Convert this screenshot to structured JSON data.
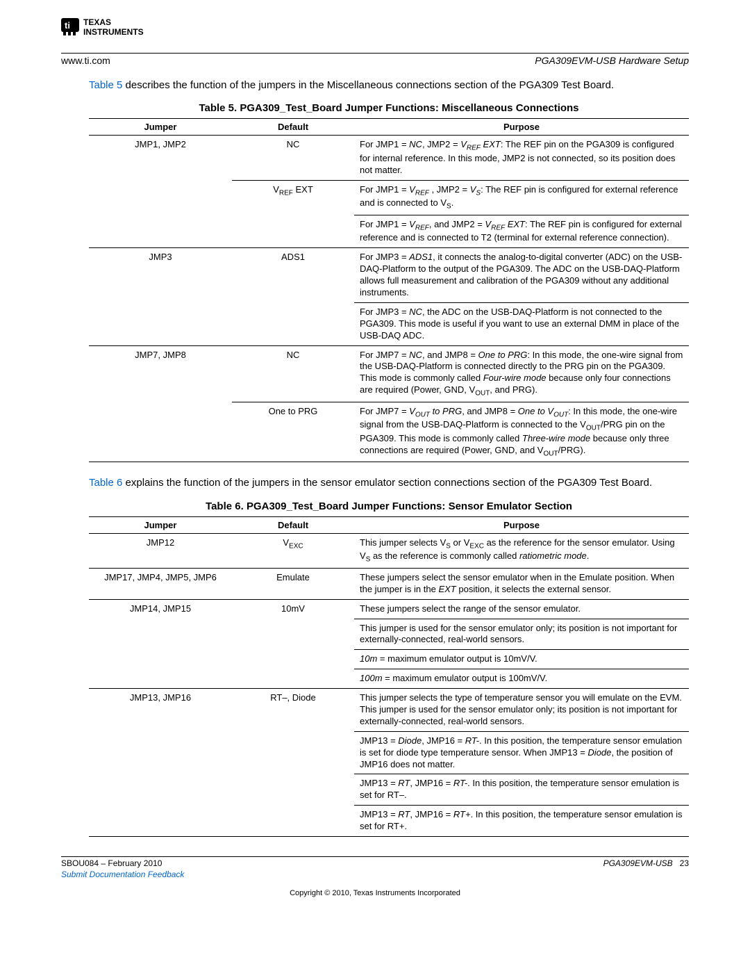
{
  "header": {
    "site_url": "www.ti.com",
    "section_title": "PGA309EVM-USB Hardware Setup"
  },
  "intro1_prefix": "Table 5",
  "intro1_rest": " describes the function of the jumpers in the Miscellaneous connections section of the PGA309 Test Board.",
  "table5": {
    "title": "Table 5. PGA309_Test_Board Jumper Functions: Miscellaneous Connections",
    "headers": {
      "c1": "Jumper",
      "c2": "Default",
      "c3": "Purpose"
    },
    "rows": [
      {
        "jumper": "JMP1, JMP2",
        "default": "NC",
        "purpose_html": "For JMP1 = <span class='ital'>NC</span>, JMP2 = <span class='ital'>V<span class='sub'>REF</span> EXT</span>: The REF pin on the PGA309 is configured for internal reference. In this mode, JMP2 is not connected, so its position does not matter."
      },
      {
        "jumper": "",
        "default_html": "V<span class='sub'>REF</span> EXT",
        "purpose_html": "For JMP1 = <span class='ital'>V<span class='sub'>REF</span></span> , JMP2 = <span class='ital'>V<span class='sub'>S</span></span>: The REF pin is configured for external reference and is connected to V<span class='sub'>S</span>."
      },
      {
        "jumper": "",
        "default": "",
        "purpose_html": "For JMP1 = <span class='ital'>V<span class='sub'>REF</span></span>, and JMP2 = <span class='ital'>V<span class='sub'>REF</span> EXT</span>: The REF pin is configured for external reference and is connected to T2 (terminal for external reference connection)."
      },
      {
        "jumper": "JMP3",
        "default": "ADS1",
        "purpose_html": "For JMP3 = <span class='ital'>ADS1</span>, it connects the analog-to-digital converter (ADC) on the USB-DAQ-Platform to the output of the PGA309. The ADC on the USB-DAQ-Platform allows full measurement and calibration of the PGA309 without any additional instruments."
      },
      {
        "jumper": "",
        "default": "",
        "purpose_html": "For JMP3 = <span class='ital'>NC</span>, the ADC on the USB-DAQ-Platform is not connected to the PGA309. This mode is useful if you want to use an external DMM in place of the USB-DAQ ADC."
      },
      {
        "jumper": "JMP7, JMP8",
        "default": "NC",
        "purpose_html": "For JMP7 = <span class='ital'>NC</span>, and JMP8 = <span class='ital'>One to PRG</span>: In this mode, the one-wire signal from the USB-DAQ-Platform is connected directly to the PRG pin on the PGA309. This mode is commonly called <span class='ital'>Four-wire mode</span> because only four connections are required (Power, GND, V<span class='sub'>OUT</span>, and PRG)."
      },
      {
        "jumper": "",
        "default": "One to PRG",
        "purpose_html": "For JMP7 = <span class='ital'>V<span class='sub'>OUT</span> to PRG</span>, and JMP8 = <span class='ital'>One to V<span class='sub'>OUT</span></span>: In this mode, the one-wire signal from the USB-DAQ-Platform is connected to the V<span class='sub'>OUT</span>/PRG pin on the PGA309. This mode is commonly called <span class='ital'>Three-wire mode</span> because only three connections are required (Power, GND, and V<span class='sub'>OUT</span>/PRG)."
      }
    ]
  },
  "intro2_prefix": "Table 6",
  "intro2_rest": " explains the function of the jumpers in the sensor emulator section connections section of the PGA309 Test Board.",
  "table6": {
    "title": "Table 6. PGA309_Test_Board Jumper Functions: Sensor Emulator Section",
    "headers": {
      "c1": "Jumper",
      "c2": "Default",
      "c3": "Purpose"
    },
    "rows": [
      {
        "jumper": "JMP12",
        "default_html": "V<span class='sub'>EXC</span>",
        "purpose_html": "This jumper selects V<span class='sub'>S</span> or V<span class='sub'>EXC</span> as the reference for the sensor emulator. Using V<span class='sub'>S</span> as the reference is commonly called <span class='ital'>ratiometric mode</span>."
      },
      {
        "jumper": "JMP17, JMP4, JMP5, JMP6",
        "default": "Emulate",
        "purpose_html": "These jumpers select the sensor emulator when in the Emulate position. When the jumper is in the <span class='ital'>EXT</span> position, it selects the external sensor."
      },
      {
        "jumper": "JMP14, JMP15",
        "default": "10mV",
        "purpose_html": "These jumpers select the range of the sensor emulator."
      },
      {
        "jumper": "",
        "default": "",
        "purpose_html": "This jumper is used for the sensor emulator only; its position is not important for externally-connected, real-world sensors."
      },
      {
        "jumper": "",
        "default": "",
        "purpose_html": "<span class='ital'>10m</span> = maximum emulator output is 10mV/V."
      },
      {
        "jumper": "",
        "default": "",
        "purpose_html": "<span class='ital'>100m</span> = maximum emulator output is 100mV/V."
      },
      {
        "jumper": "JMP13, JMP16",
        "default": "RT–, Diode",
        "purpose_html": "This jumper selects the type of temperature sensor you will emulate on the EVM. This jumper is used for the sensor emulator only; its position is not important for externally-connected, real-world sensors."
      },
      {
        "jumper": "",
        "default": "",
        "purpose_html": "JMP13 = <span class='ital'>Diode</span>, JMP16 = <span class='ital'>RT-</span>. In this position, the temperature sensor emulation is set for diode type temperature sensor. When JMP13 = <span class='ital'>Diode</span>, the position of JMP16 does not matter."
      },
      {
        "jumper": "",
        "default": "",
        "purpose_html": "JMP13 = <span class='ital'>RT</span>, JMP16 = <span class='ital'>RT-</span>. In this position, the temperature sensor emulation is set for RT–."
      },
      {
        "jumper": "",
        "default": "",
        "purpose_html": "JMP13 = <span class='ital'>RT</span>, JMP16 = <span class='ital'>RT+</span>. In this position, the temperature sensor emulation is set for RT+."
      }
    ]
  },
  "footer": {
    "doc_id": "SBOU084 – February 2010",
    "right_text": "PGA309EVM-USB",
    "page_num": "23",
    "feedback_link": "Submit Documentation Feedback",
    "copyright": "Copyright © 2010, Texas Instruments Incorporated"
  }
}
